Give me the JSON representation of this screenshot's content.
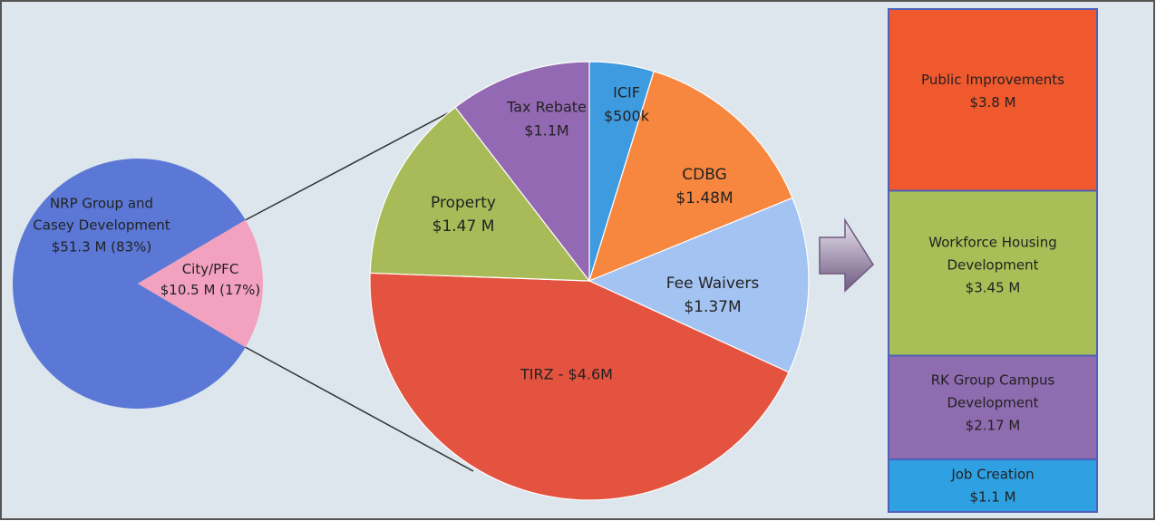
{
  "chart_data": [
    {
      "type": "pie",
      "slices": [
        {
          "name": "NRP Group and Casey Development",
          "lines": [
            "NRP Group and",
            "Casey Development",
            "$51.3 M (83%)"
          ],
          "value": 51.3,
          "percent": 83,
          "color": "#5B78D6"
        },
        {
          "name": "City/PFC",
          "lines": [
            "City/PFC",
            "$10.5 M (17%)"
          ],
          "value": 10.5,
          "percent": 17,
          "color": "#F2A1BF"
        }
      ]
    },
    {
      "type": "pie",
      "slices": [
        {
          "name": "ICIF",
          "lines": [
            "ICIF",
            "$500k"
          ],
          "value": 0.5,
          "color": "#3F9BE0"
        },
        {
          "name": "CDBG",
          "lines": [
            "CDBG",
            "$1.48M"
          ],
          "value": 1.48,
          "color": "#F7873F"
        },
        {
          "name": "Fee Waivers",
          "lines": [
            "Fee Waivers",
            "$1.37M"
          ],
          "value": 1.37,
          "color": "#A3C3F2"
        },
        {
          "name": "TIRZ",
          "lines": [
            "TIRZ - $4.6M"
          ],
          "value": 4.6,
          "color": "#E4533F"
        },
        {
          "name": "Property",
          "lines": [
            "Property",
            "$1.47 M"
          ],
          "value": 1.47,
          "color": "#A8BB58"
        },
        {
          "name": "Tax Rebate",
          "lines": [
            "Tax Rebate",
            "$1.1M"
          ],
          "value": 1.1,
          "color": "#9469B3"
        }
      ]
    },
    {
      "type": "bar",
      "stacked": true,
      "segments": [
        {
          "name": "Public Improvements",
          "lines": [
            "Public Improvements",
            "$3.8 M"
          ],
          "value": 3.8,
          "color": "#F0582E"
        },
        {
          "name": "Workforce Housing Development",
          "lines": [
            "Workforce Housing",
            "Development",
            "$3.45 M"
          ],
          "value": 3.45,
          "color": "#A8BE56"
        },
        {
          "name": "RK Group Campus Development",
          "lines": [
            "RK Group Campus",
            "Development",
            "$2.17 M"
          ],
          "value": 2.17,
          "color": "#8F6BB0"
        },
        {
          "name": "Job Creation",
          "lines": [
            "Job Creation",
            "$1.1 M"
          ],
          "value": 1.1,
          "color": "#2FA0E2"
        }
      ]
    }
  ],
  "colors": {
    "background": "#DCE6EC",
    "frame": "#555555",
    "connector": "#333333",
    "column_border": "#5060B8",
    "arrow_light": "#E9E3EF",
    "arrow_dark": "#6E5A80"
  }
}
